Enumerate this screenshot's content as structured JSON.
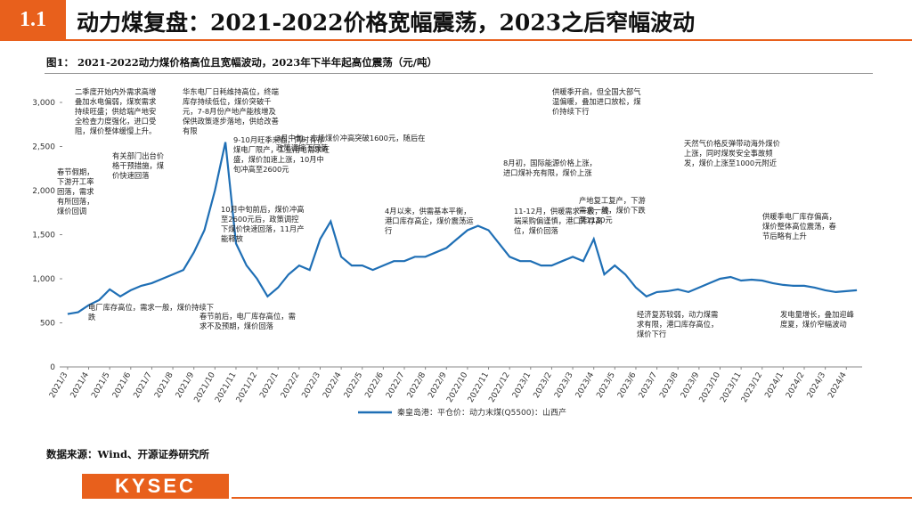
{
  "header": {
    "section": "1.1",
    "title": "动力煤复盘：2021-2022价格宽幅震荡，2023之后窄幅波动"
  },
  "source": "数据来源：Wind、开源证券研究所",
  "logo": "KYSEC",
  "chart_data": {
    "type": "line",
    "title": "图1：  2021-2022动力煤价格高位且宽幅波动，2023年下半年起高位震荡（元/吨）",
    "categories": [
      "2021/3",
      null,
      "2021/4",
      null,
      "2021/5",
      null,
      "2021/6",
      null,
      "2021/7",
      null,
      "2021/8",
      null,
      "2021/9",
      null,
      "2021/10",
      null,
      "2021/11",
      null,
      "2021/12",
      null,
      "2022/1",
      null,
      "2022/2",
      null,
      "2022/3",
      null,
      "2022/4",
      null,
      "2022/5",
      null,
      "2022/6",
      null,
      "2022/7",
      null,
      "2022/8",
      null,
      "2022/9",
      null,
      "2022/10",
      null,
      "2022/11",
      null,
      "2022/12",
      null,
      "2023/1",
      null,
      "2023/2",
      null,
      "2023/3",
      null,
      "2023/4",
      null,
      "2023/5",
      null,
      "2023/6",
      null,
      "2023/7",
      null,
      "2023/8",
      null,
      "2023/9",
      null,
      "2023/10",
      null,
      "2023/11",
      null,
      "2023/12",
      null,
      "2024/1",
      null,
      "2024/2",
      null,
      "2024/3",
      null,
      "2024/4",
      null
    ],
    "series": [
      {
        "name": "秦皇岛港：平仓价：动力末煤(Q5500)：山西产",
        "color": "#1f6fb5",
        "values": [
          600,
          620,
          700,
          760,
          880,
          800,
          870,
          920,
          950,
          1000,
          1050,
          1100,
          1300,
          1550,
          2000,
          2550,
          1400,
          1150,
          1000,
          800,
          900,
          1050,
          1150,
          1100,
          1450,
          1650,
          1250,
          1150,
          1150,
          1100,
          1150,
          1200,
          1200,
          1250,
          1250,
          1300,
          1350,
          1450,
          1550,
          1600,
          1550,
          1400,
          1250,
          1200,
          1200,
          1150,
          1150,
          1200,
          1250,
          1200,
          1450,
          1050,
          1150,
          1050,
          900,
          800,
          850,
          860,
          880,
          850,
          900,
          950,
          1000,
          1020,
          980,
          990,
          980,
          950,
          930,
          920,
          920,
          900,
          870,
          850,
          860,
          870
        ]
      }
    ],
    "ylim": [
      0,
      3000
    ],
    "yticks": [
      0,
      {
        "value": 500,
        "label": "500"
      },
      {
        "value": 1000,
        "label": "1,000"
      },
      {
        "value": 1500,
        "label": "1,500"
      },
      {
        "value": 2000,
        "label": "2,000"
      },
      {
        "value": 2500,
        "label": "2,500"
      },
      {
        "value": 3000,
        "label": "3,000"
      }
    ],
    "annotations": [
      "二季度开始内外需求高增叠加水电偏弱，煤炭需求持续旺盛；供给端产地安全检查力度强化，进口受阻，煤价整体缓慢上升。",
      "华东电厂日耗维持高位，终端库存持续低位，煤价突破千元，7-8月份产地产能核增及保供政策逐步落地，供给改善有限",
      "9-10月旺季来临，同时有存煤电厂限产，工业用电需求旺盛，煤价加速上涨，10月中旬冲高至2600元",
      "春节假期，下游开工率回落，需求有所回落，煤价回调",
      "有关部门出台价格干预措施，煤价快速回落",
      "3月中旬，市场煤价冲高突破1600元，随后在政策调控下回落",
      "8月初，国际能源价格上涨，进口煤补充有限，煤价上涨",
      "11-12月，供暖需求一般，终端采购偏谨慎，港口库存高位，煤价回落",
      "供暖季开启，但全国大部气温偏暖，叠加进口放松，煤价持续下行",
      "10月中旬前后，煤价冲高至2600元后，政策调控下煤价快速回落，11月产能释放",
      "电厂库存高位，需求一般，煤价持续下跌",
      "春节前后，电厂库存高位，需求不及预期，煤价回落",
      "4月以来，供需基本平衡，港口库存高企，煤价震荡运行",
      "产地复工复产，下游需求一般，煤价下跌至1130元",
      "经济复苏较弱，动力煤需求有限，港口库存高位，煤价下行",
      "天然气价格反弹带动海外煤价上涨，同时煤炭安全事故频发，煤价上涨至1000元附近",
      "供暖季电厂库存偏高，煤价整体高位震荡，春节后略有上升",
      "发电量增长，叠加迎峰度夏，煤价窄幅波动"
    ]
  }
}
